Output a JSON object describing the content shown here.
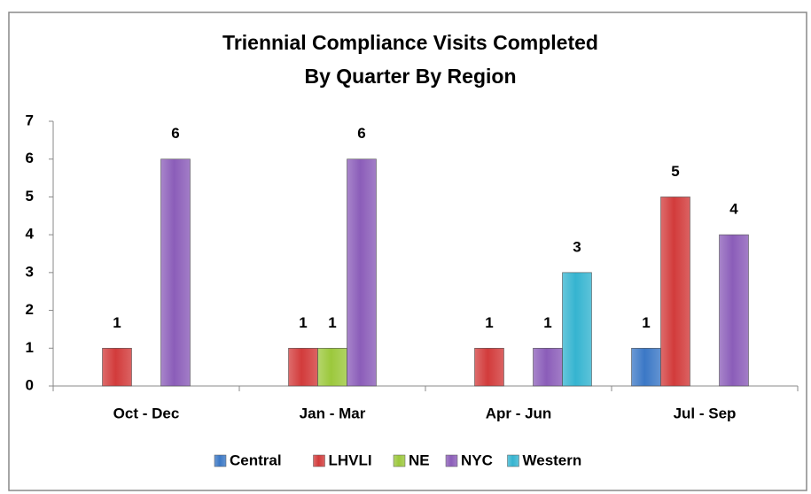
{
  "chart_data": {
    "type": "bar",
    "title": [
      "Triennial Compliance Visits Completed",
      "By Quarter By Region"
    ],
    "categories": [
      "Oct - Dec",
      "Jan - Mar",
      "Apr - Jun",
      "Jul - Sep"
    ],
    "series": [
      {
        "name": "Central",
        "color": "#3b78c6",
        "values": [
          null,
          null,
          null,
          1
        ]
      },
      {
        "name": "LHVLI",
        "color": "#d23b3b",
        "values": [
          1,
          1,
          1,
          5
        ]
      },
      {
        "name": "NE",
        "color": "#9cc83c",
        "values": [
          null,
          1,
          null,
          null
        ]
      },
      {
        "name": "NYC",
        "color": "#8b5db9",
        "values": [
          6,
          6,
          1,
          4
        ]
      },
      {
        "name": "Western",
        "color": "#35b4d0",
        "values": [
          null,
          null,
          3,
          null
        ]
      }
    ],
    "ylim": [
      0,
      7
    ],
    "yticks": [
      0,
      1,
      2,
      3,
      4,
      5,
      6,
      7
    ],
    "grid": false,
    "legend": "bottom"
  }
}
